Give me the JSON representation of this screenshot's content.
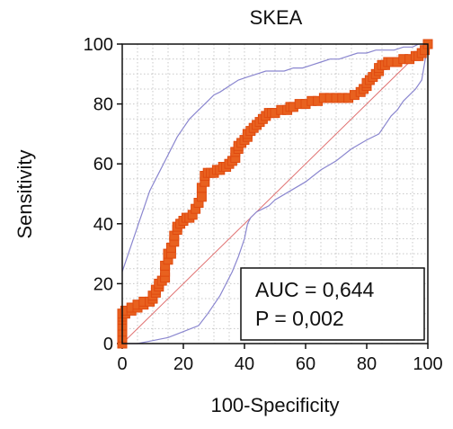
{
  "chart_data": {
    "type": "line",
    "title": "SKEA",
    "xlabel": "100-Specificity",
    "ylabel": "Sensitivity",
    "xlim": [
      0,
      100
    ],
    "ylim": [
      0,
      100
    ],
    "xticks": [
      "0",
      "20",
      "40",
      "60",
      "80",
      "100"
    ],
    "yticks": [
      "0",
      "20",
      "40",
      "60",
      "80",
      "100"
    ],
    "grid": true,
    "colors": {
      "roc": "#e04a0f",
      "marker_fill": "#e8611f",
      "ci": "#8a86cf",
      "diagonal": "#e07070",
      "grid": "#c8c8c8"
    },
    "annotation": {
      "auc": "AUC = 0,644",
      "p": "P = 0,002"
    },
    "series": [
      {
        "role": "roc",
        "x": [
          0,
          0,
          0,
          0,
          0,
          0,
          0,
          1,
          1,
          3,
          3,
          5,
          5,
          7,
          7,
          9,
          10,
          10,
          11,
          11,
          12,
          12,
          13,
          14,
          14,
          14,
          15,
          15,
          16,
          16,
          17,
          17,
          18,
          18,
          19,
          20,
          21,
          22,
          23,
          24,
          25,
          26,
          26,
          27,
          27,
          28,
          29,
          30,
          31,
          32,
          33,
          34,
          35,
          36,
          37,
          37,
          38,
          38,
          39,
          40,
          41,
          41,
          42,
          43,
          44,
          45,
          46,
          47,
          48,
          49,
          50,
          52,
          54,
          55,
          56,
          58,
          60,
          62,
          64,
          66,
          68,
          70,
          72,
          74,
          76,
          78,
          79,
          80,
          80,
          81,
          82,
          83,
          84,
          84,
          85,
          86,
          87,
          88,
          90,
          92,
          94,
          96,
          97,
          98,
          99,
          100
        ],
        "y": [
          0,
          2,
          4,
          6,
          8,
          9,
          10,
          10,
          11,
          11,
          12,
          12,
          13,
          13,
          14,
          14,
          15,
          16,
          17,
          18,
          19,
          20,
          21,
          22,
          24,
          26,
          28,
          30,
          30,
          32,
          34,
          36,
          38,
          39,
          40,
          41,
          42,
          42,
          43,
          45,
          47,
          49,
          52,
          54,
          56,
          57,
          57,
          57,
          58,
          58,
          59,
          59,
          60,
          61,
          62,
          64,
          65,
          66,
          67,
          68,
          69,
          70,
          71,
          72,
          73,
          74,
          75,
          76,
          77,
          77,
          77,
          78,
          78,
          79,
          79,
          80,
          80,
          81,
          81,
          82,
          82,
          82,
          82,
          82,
          83,
          84,
          85,
          86,
          87,
          88,
          89,
          90,
          91,
          92,
          93,
          93,
          94,
          94,
          94,
          95,
          95,
          96,
          96,
          97,
          98,
          100
        ]
      },
      {
        "role": "ci-upper",
        "x": [
          0,
          1,
          2,
          3,
          4,
          5,
          6,
          7,
          8,
          9,
          10,
          12,
          14,
          16,
          18,
          20,
          22,
          24,
          26,
          28,
          30,
          32,
          35,
          38,
          41,
          44,
          47,
          50,
          53,
          56,
          59,
          62,
          65,
          68,
          71,
          74,
          77,
          80,
          83,
          86,
          89,
          92,
          95,
          97,
          99,
          100
        ],
        "y": [
          24,
          27,
          30,
          33,
          36,
          39,
          42,
          45,
          48,
          51,
          53,
          57,
          61,
          65,
          69,
          72,
          75,
          77,
          79,
          81,
          83,
          84,
          86,
          88,
          89,
          90,
          91,
          91,
          91,
          92,
          92,
          93,
          94,
          95,
          95,
          96,
          97,
          97,
          98,
          98,
          98,
          99,
          99,
          100,
          100,
          100
        ]
      },
      {
        "role": "ci-lower",
        "x": [
          0,
          5,
          10,
          15,
          20,
          25,
          28,
          30,
          32,
          34,
          36,
          38,
          40,
          41,
          42,
          44,
          46,
          48,
          50,
          55,
          60,
          65,
          70,
          75,
          80,
          84,
          86,
          88,
          90,
          92,
          94,
          96,
          98,
          100
        ],
        "y": [
          0,
          0,
          1,
          2,
          4,
          6,
          10,
          13,
          16,
          20,
          24,
          29,
          35,
          40,
          42,
          44,
          45,
          46,
          48,
          51,
          54,
          58,
          61,
          65,
          68,
          70,
          73,
          76,
          78,
          81,
          83,
          85,
          88,
          100
        ]
      },
      {
        "role": "diagonal",
        "x": [
          0,
          100
        ],
        "y": [
          0,
          100
        ]
      }
    ]
  }
}
